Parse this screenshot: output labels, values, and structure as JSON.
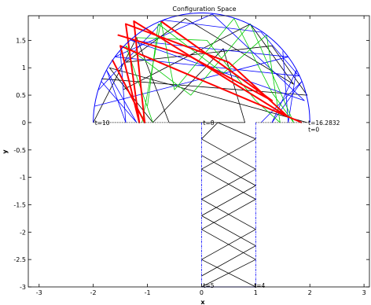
{
  "chart_data": {
    "type": "line",
    "title": "Configuration Space",
    "xlabel": "x",
    "ylabel": "y",
    "xlim": [
      -3.2,
      3.1
    ],
    "ylim": [
      -3,
      1.95
    ],
    "x_ticks": [
      -3,
      -2,
      -1,
      0,
      1,
      2,
      3
    ],
    "y_ticks": [
      1.5,
      1,
      0.5,
      0,
      -0.5,
      -1,
      -1.5,
      -2,
      -2.5,
      -3
    ],
    "grid": false,
    "boundary": {
      "color": "#0000ff",
      "semicircle": {
        "center": [
          0,
          0
        ],
        "radius": 2
      },
      "stem": {
        "x": [
          0,
          1
        ],
        "y": [
          -3,
          0
        ]
      },
      "base_line_y": 0
    },
    "series": [
      {
        "color": "#000000",
        "points": [
          [
            1.95,
            0
          ],
          [
            -1.7,
            1.0
          ],
          [
            -0.9,
            0
          ],
          [
            0.4,
            1.35
          ],
          [
            0.8,
            0
          ],
          [
            0.3,
            0
          ],
          [
            0,
            -0.3
          ],
          [
            1,
            -0.85
          ],
          [
            0,
            -1.4
          ],
          [
            1,
            -1.95
          ],
          [
            0,
            -2.5
          ],
          [
            1,
            -3
          ]
        ]
      },
      {
        "color": "#000000",
        "points": [
          [
            -2,
            0
          ],
          [
            -1.2,
            1.55
          ],
          [
            -0.6,
            0
          ],
          [
            0.3,
            0
          ],
          [
            1,
            -0.3
          ],
          [
            0,
            -0.85
          ],
          [
            1,
            -1.4
          ],
          [
            0,
            -1.95
          ],
          [
            1,
            -2.5
          ],
          [
            0,
            -3
          ]
        ]
      },
      {
        "color": "#000000",
        "points": [
          [
            -1.45,
            0.6
          ],
          [
            0.9,
            1.8
          ],
          [
            1.7,
            0.7
          ],
          [
            -0.3,
            1.9
          ],
          [
            -1.4,
            1.1
          ],
          [
            1.3,
            1.4
          ],
          [
            1.95,
            0.5
          ],
          [
            -1.85,
            0.8
          ]
        ]
      },
      {
        "color": "#000000",
        "points": [
          [
            0,
            -0.6
          ],
          [
            1,
            -1.15
          ],
          [
            0,
            -1.7
          ],
          [
            1,
            -2.25
          ],
          [
            0,
            -2.8
          ]
        ]
      },
      {
        "color": "#0000ff",
        "points": [
          [
            -1.9,
            0.6
          ],
          [
            -0.7,
            1.87
          ],
          [
            1.1,
            1.65
          ],
          [
            1.8,
            0.85
          ],
          [
            -1.6,
            1.2
          ],
          [
            0.2,
            1.98
          ],
          [
            1.9,
            0.4
          ],
          [
            -1.3,
            1.5
          ],
          [
            1.6,
            1.2
          ],
          [
            -1.97,
            0.3
          ]
        ]
      },
      {
        "color": "#0000ff",
        "points": [
          [
            1.5,
            1.3
          ],
          [
            1.6,
            0
          ],
          [
            1.75,
            0.95
          ],
          [
            1.3,
            0
          ],
          [
            1.85,
            0.75
          ],
          [
            1.1,
            0
          ]
        ]
      },
      {
        "color": "#0000ff",
        "points": [
          [
            -1.5,
            1.3
          ],
          [
            -1.4,
            0
          ],
          [
            -1.75,
            0.95
          ],
          [
            -1.2,
            0
          ],
          [
            -1.85,
            0.75
          ]
        ]
      },
      {
        "color": "#00cc00",
        "points": [
          [
            -1.1,
            0
          ],
          [
            -0.75,
            1.85
          ],
          [
            -0.5,
            0.6
          ],
          [
            0.6,
            1.9
          ],
          [
            1.3,
            0.55
          ],
          [
            1.7,
            0
          ],
          [
            0.9,
            1.8
          ],
          [
            -0.2,
            0.5
          ],
          [
            -1.4,
            1.4
          ],
          [
            -0.9,
            0
          ]
        ]
      },
      {
        "color": "#00cc00",
        "points": [
          [
            -1.2,
            1.55
          ],
          [
            0.1,
            1.5
          ],
          [
            1.0,
            0.4
          ],
          [
            1.45,
            0
          ],
          [
            1.2,
            1.6
          ],
          [
            0.4,
            0.9
          ],
          [
            -0.8,
            1.8
          ],
          [
            -1.0,
            0.3
          ]
        ]
      },
      {
        "color": "#ff0000",
        "points": [
          [
            -1.65,
            1.15
          ],
          [
            -1.05,
            0
          ],
          [
            -1.25,
            1.85
          ],
          [
            1.6,
            0.1
          ],
          [
            0.5,
            1.1
          ],
          [
            -1.4,
            1.8
          ],
          [
            -1.15,
            0
          ],
          [
            -1.5,
            1.4
          ],
          [
            1.85,
            0
          ]
        ]
      },
      {
        "color": "#ff0000",
        "points": [
          [
            -0.75,
            1.85
          ],
          [
            1.3,
            0.4
          ],
          [
            -0.2,
            1.2
          ],
          [
            -1.55,
            1.6
          ]
        ]
      }
    ],
    "annotations": [
      {
        "text": "t=16.2832",
        "x": 1.97,
        "y": 0
      },
      {
        "text": "t=0",
        "x": 1.97,
        "y": -0.12
      },
      {
        "text": "t=10",
        "x": -1.97,
        "y": 0
      },
      {
        "text": "t=8",
        "x": 0.03,
        "y": 0
      },
      {
        "text": "t=5",
        "x": 0.03,
        "y": -2.97
      },
      {
        "text": "t=4",
        "x": 0.97,
        "y": -2.97
      }
    ]
  }
}
